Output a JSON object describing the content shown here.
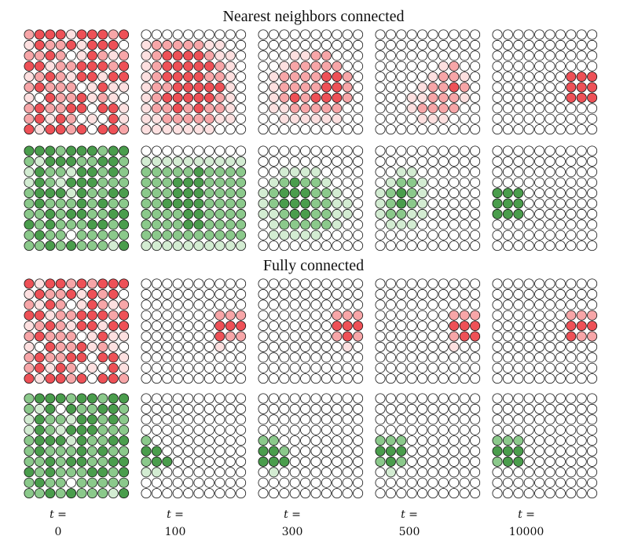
{
  "titles": {
    "nearest": "Nearest neighbors connected",
    "fully": "Fully connected"
  },
  "time_label": {
    "var": "t",
    "eq": "="
  },
  "time_steps": [
    "0",
    "100",
    "300",
    "500",
    "10000"
  ],
  "grid_size": 10,
  "colors": {
    "red": [
      "#ffffff",
      "#fde0e0",
      "#f7a6a8",
      "#ee5157",
      "#e01f26"
    ],
    "green": [
      "#ffffff",
      "#d3ecd2",
      "#8bc98b",
      "#4a9d4c",
      "#1f7a26"
    ],
    "stroke": "#111111"
  },
  "panels": {
    "nearest_red": [
      [
        "3444244434",
        "2433424441",
        "3343124323",
        "4423344434",
        "2343244244",
        "3433312422",
        "2143342321",
        "3433441442",
        "3424312142",
        "4244341443"
      ],
      [
        "1111111111",
        "2333332211",
        "2344443221",
        "2344444321",
        "2344443321",
        "2334444421",
        "2344444321",
        "2334343321",
        "2233333221",
        "2222222111"
      ],
      [
        "1111111111",
        "1111111111",
        "1112233111",
        "1123333311",
        "1233334431",
        "1233334431",
        "1234344431",
        "1223333311",
        "1122222211",
        "1111111111"
      ],
      [
        "1111111111",
        "1111111111",
        "1111111111",
        "1111112311",
        "1111123321",
        "1111233431",
        "1112233321",
        "1112333311",
        "1111222111",
        "1111111111"
      ],
      [
        "1111111111",
        "1111111111",
        "1111111111",
        "1111111111",
        "1111111444",
        "1111111444",
        "1111111444",
        "1111111111",
        "1111111111",
        "1111111111"
      ]
    ],
    "nearest_green": [
      [
        "4443444344",
        "3244433443",
        "2433244343",
        "2432444333",
        "3444243344",
        "3433343433",
        "3343443344",
        "4343334434",
        "3433133333",
        "3343433324"
      ],
      [
        "1111111111",
        "2222222222",
        "3333343333",
        "3334443333",
        "3334443333",
        "3344443333",
        "3333443333",
        "3333443333",
        "3333333333",
        "2222222222"
      ],
      [
        "1111111111",
        "1111111111",
        "1122221111",
        "1234332111",
        "2344433211",
        "2344433221",
        "2234433221",
        "1233333211",
        "1222221111",
        "1111111111"
      ],
      [
        "1111111111",
        "1111111111",
        "1122111111",
        "1233211111",
        "2343211111",
        "2343211111",
        "2332211111",
        "1222111111",
        "1111111111",
        "1111111111"
      ],
      [
        "1111111111",
        "1111111111",
        "1111111111",
        "1111111111",
        "4441111111",
        "4441111111",
        "4441111111",
        "1111111111",
        "1111111111",
        "1111111111"
      ]
    ],
    "fully_red": [
      [
        "4244343444",
        "2433424341",
        "3243124323",
        "4423344434",
        "2343244244",
        "3433312422",
        "2143342321",
        "3433441442",
        "3424312142",
        "4244341443"
      ],
      [
        "1111111111",
        "1111111111",
        "1111111111",
        "1111111333",
        "1111111444",
        "1111111433",
        "1111111211",
        "1111111111",
        "1111111111",
        "1111111111"
      ],
      [
        "1111111111",
        "1111111111",
        "1111111111",
        "1111111333",
        "1111111444",
        "1111111343",
        "1111111121",
        "1111111111",
        "1111111111",
        "1111111111"
      ],
      [
        "1111111111",
        "1111111111",
        "1111111111",
        "1111111333",
        "1111111444",
        "1111111344",
        "1111111211",
        "1111111111",
        "1111111111",
        "1111111111"
      ],
      [
        "1111111111",
        "1111111111",
        "1111111111",
        "1111111333",
        "1111111444",
        "1111111433",
        "1111111111",
        "1111111111",
        "1111111111",
        "1111111111"
      ]
    ],
    "fully_green": [
      [
        "3444344344",
        "3241433443",
        "2433244343",
        "2432444333",
        "3444243344",
        "3433343433",
        "3343443344",
        "4343334434",
        "3433133333",
        "3343433324"
      ],
      [
        "1111111111",
        "1111111111",
        "1111111111",
        "1111111111",
        "3111111111",
        "4411111111",
        "3441111111",
        "2211111111",
        "1111111111",
        "1111111111"
      ],
      [
        "1111111111",
        "1111111111",
        "1111111111",
        "1111111111",
        "3311111111",
        "4431111111",
        "4441111111",
        "1211111111",
        "1111111111",
        "1111111111"
      ],
      [
        "1111111111",
        "1111111111",
        "1111111111",
        "1111111111",
        "3331111111",
        "4441111111",
        "3431111111",
        "1211111111",
        "1111111111",
        "1111111111"
      ],
      [
        "1111111111",
        "1111111111",
        "1111111111",
        "1111111111",
        "3331111111",
        "4441111111",
        "3441111111",
        "1111111111",
        "1111111111",
        "1111111111"
      ]
    ]
  }
}
